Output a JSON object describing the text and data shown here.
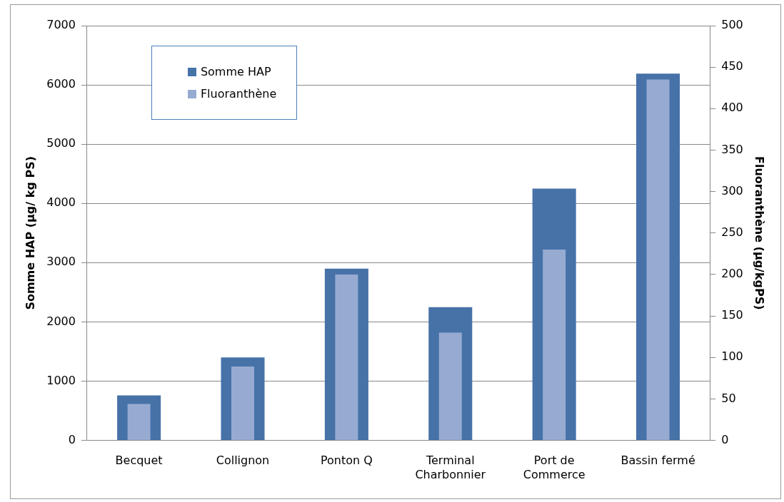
{
  "chart_data": {
    "type": "bar",
    "categories": [
      "Becquet",
      "Collignon",
      "Ponton Q",
      "Terminal Charbonnier",
      "Port de Commerce",
      "Bassin fermé"
    ],
    "series": [
      {
        "name": "Somme HAP",
        "color": "#4672a8",
        "values": [
          760,
          1400,
          2900,
          2250,
          4250,
          6190
        ]
      },
      {
        "name": "Fluoranthène",
        "color": "#97abd2",
        "axis": "y2",
        "values": [
          44,
          89,
          200,
          130,
          230,
          435
        ]
      }
    ],
    "ylabel": "Somme HAP (µg/ kg PS)",
    "y2label": "Fluoranthène (µg/kgPS)",
    "ylim": [
      0,
      7000
    ],
    "yticks": [
      0,
      1000,
      2000,
      3000,
      4000,
      5000,
      6000,
      7000
    ],
    "y2lim": [
      0,
      500
    ],
    "y2ticks": [
      0,
      50,
      100,
      150,
      200,
      250,
      300,
      350,
      400,
      450,
      500
    ],
    "grid": "y",
    "legend": "top left"
  }
}
